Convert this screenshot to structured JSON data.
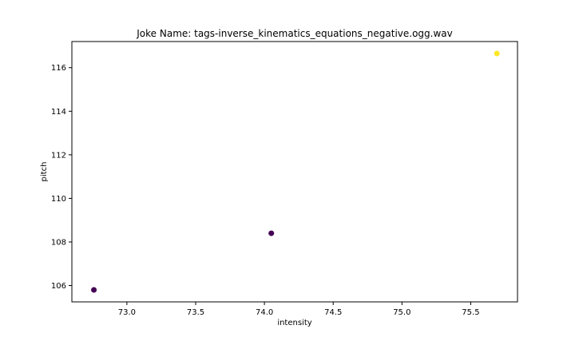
{
  "chart_data": {
    "type": "scatter",
    "title": "Joke Name: tags-inverse_kinematics_equations_negative.ogg.wav",
    "xlabel": "intensity",
    "ylabel": "pitch",
    "xlim": [
      72.6,
      75.84
    ],
    "ylim": [
      105.25,
      117.2
    ],
    "xticks": [
      73.0,
      73.5,
      74.0,
      74.5,
      75.0,
      75.5
    ],
    "xtick_labels": [
      "73.0",
      "73.5",
      "74.0",
      "74.5",
      "75.0",
      "75.5"
    ],
    "yticks": [
      106,
      108,
      110,
      112,
      114,
      116
    ],
    "ytick_labels": [
      "106",
      "108",
      "110",
      "112",
      "114",
      "116"
    ],
    "grid": false,
    "points": [
      {
        "x": 72.76,
        "y": 105.8,
        "color": "#440154"
      },
      {
        "x": 74.05,
        "y": 108.4,
        "color": "#440154"
      },
      {
        "x": 75.69,
        "y": 116.65,
        "color": "#fde725"
      }
    ]
  }
}
